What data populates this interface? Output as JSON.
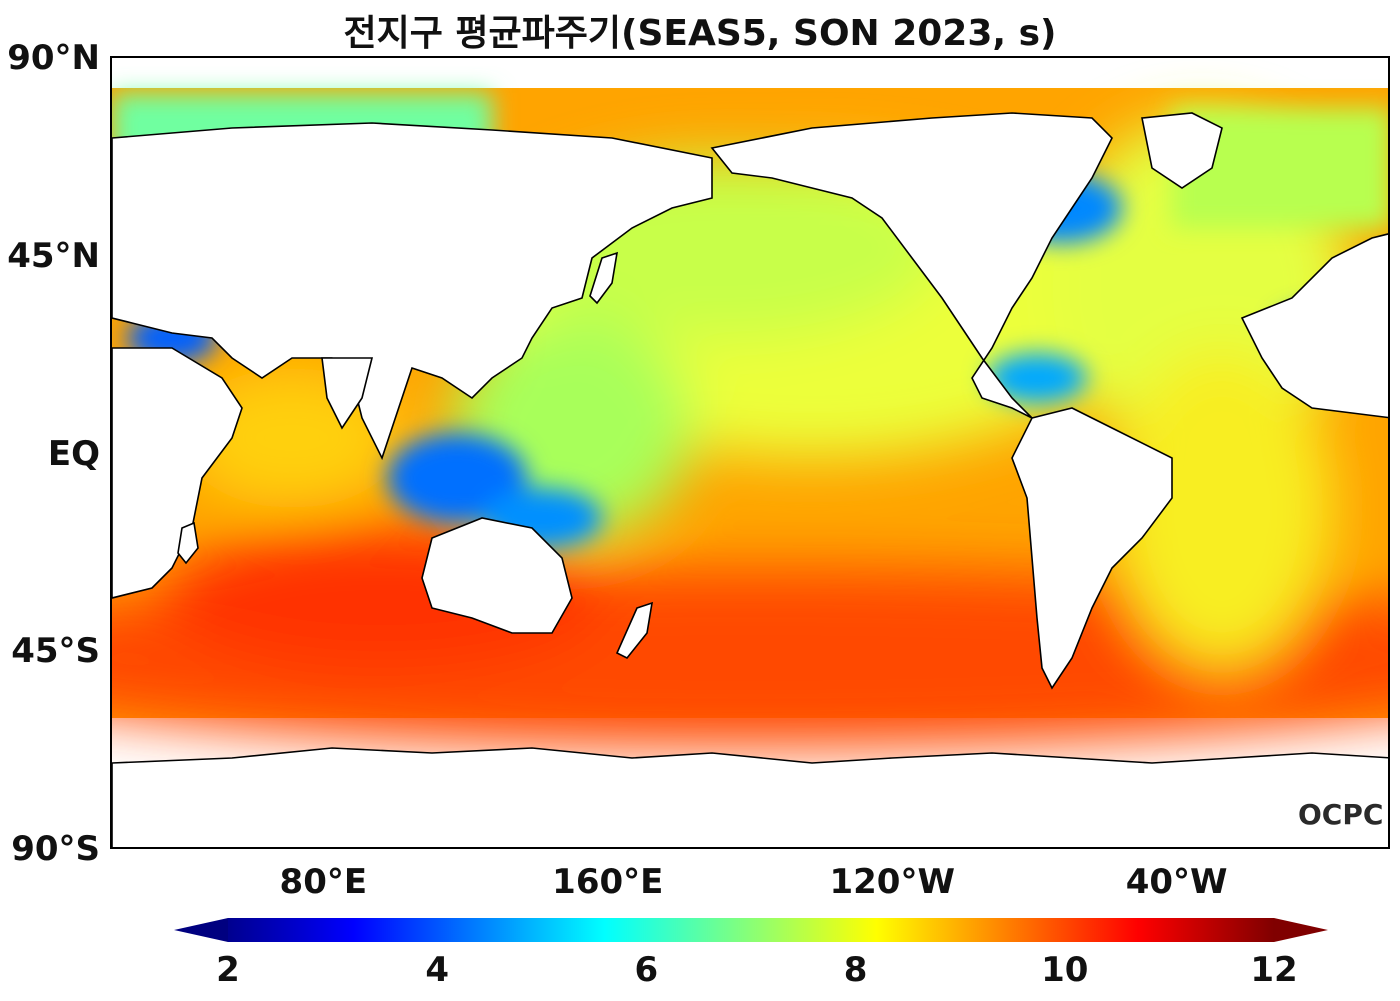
{
  "title": "전지구 평균파주기(SEAS5, SON 2023, s)",
  "lat_labels": [
    "90°N",
    "45°N",
    "EQ",
    "45°S",
    "90°S"
  ],
  "lon_labels": [
    "80°E",
    "160°E",
    "120°W",
    "40°W"
  ],
  "logo": "OCPC",
  "colorbar": {
    "ticks": [
      "2",
      "4",
      "6",
      "8",
      "10",
      "12"
    ],
    "min": 2,
    "max": 12,
    "colormap": "jet",
    "extend": "both"
  },
  "map": {
    "projection": "PlateCarree",
    "central_longitude": -160,
    "extent": [
      20,
      380,
      -90,
      90
    ],
    "variable": "mean wave period",
    "unit": "s",
    "land_color": "#ffffff",
    "coastline_color": "#000000",
    "colors": {
      "open_ocean_south": "#ff5500",
      "tropical_pacific": "#ff9900",
      "north_pacific": "#f4ff30",
      "north_atlantic": "#e8ff40",
      "marginal_seas": "#0088ff",
      "arctic": "#60ffb0"
    }
  }
}
